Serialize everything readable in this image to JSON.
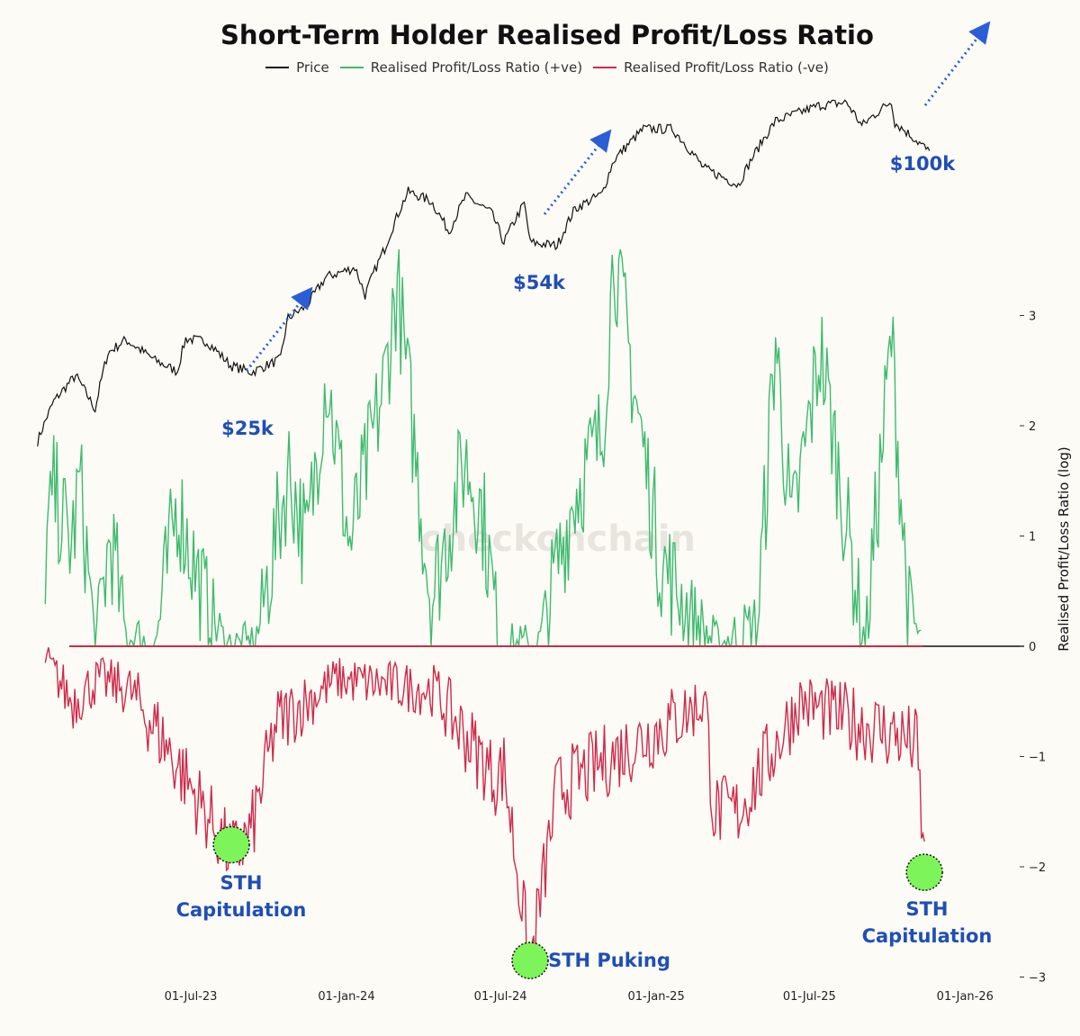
{
  "chart_data": {
    "type": "line",
    "title": "Short-Term Holder Realised Profit/Loss Ratio",
    "ylabel_right": "Realised Profit/Loss Ratio (log)",
    "ylim": [
      -3,
      3.5
    ],
    "y_ticks": [
      "3",
      "2",
      "1",
      "0",
      "−1",
      "−2",
      "−3"
    ],
    "y_tick_values": [
      3,
      2,
      1,
      0,
      -1,
      -2,
      -3
    ],
    "x_ticks": [
      "01-Jul-23",
      "01-Jan-24",
      "01-Jul-24",
      "01-Jan-25",
      "01-Jul-25",
      "01-Jan-26"
    ],
    "x_range": [
      "2023-01-01",
      "2025-11-20"
    ],
    "grid": false,
    "legend_position": "top-center",
    "watermark": "checkonchain",
    "series": [
      {
        "name": "Price",
        "color": "#111111",
        "axis": "price (log, unlabeled)",
        "points": [
          [
            "2023-01-01",
            16600
          ],
          [
            "2023-01-20",
            21000
          ],
          [
            "2023-02-15",
            24500
          ],
          [
            "2023-03-10",
            20000
          ],
          [
            "2023-03-25",
            28000
          ],
          [
            "2023-04-15",
            30300
          ],
          [
            "2023-05-20",
            26800
          ],
          [
            "2023-06-15",
            25100
          ],
          [
            "2023-06-25",
            30500
          ],
          [
            "2023-07-20",
            30000
          ],
          [
            "2023-08-17",
            26000
          ],
          [
            "2023-09-11",
            25000
          ],
          [
            "2023-10-15",
            27000
          ],
          [
            "2023-10-24",
            34500
          ],
          [
            "2023-11-15",
            37000
          ],
          [
            "2023-12-08",
            44000
          ],
          [
            "2024-01-11",
            46500
          ],
          [
            "2024-01-23",
            39500
          ],
          [
            "2024-02-15",
            52000
          ],
          [
            "2024-03-14",
            73000
          ],
          [
            "2024-04-10",
            69000
          ],
          [
            "2024-05-01",
            57500
          ],
          [
            "2024-05-21",
            71000
          ],
          [
            "2024-06-20",
            64500
          ],
          [
            "2024-07-05",
            54000
          ],
          [
            "2024-07-29",
            68000
          ],
          [
            "2024-08-05",
            54000
          ],
          [
            "2024-09-06",
            53000
          ],
          [
            "2024-09-27",
            66000
          ],
          [
            "2024-10-29",
            72000
          ],
          [
            "2024-11-12",
            88000
          ],
          [
            "2024-12-17",
            106000
          ],
          [
            "2025-01-20",
            106000
          ],
          [
            "2025-02-26",
            84000
          ],
          [
            "2025-04-08",
            76000
          ],
          [
            "2025-05-22",
            111000
          ],
          [
            "2025-07-14",
            122000
          ],
          [
            "2025-08-14",
            124000
          ],
          [
            "2025-09-01",
            108000
          ],
          [
            "2025-10-06",
            125000
          ],
          [
            "2025-10-10",
            110000
          ],
          [
            "2025-11-14",
            95000
          ],
          [
            "2025-11-20",
            92000
          ]
        ]
      },
      {
        "name": "Realised Profit/Loss Ratio (+ve)",
        "color": "#3dbb6e",
        "points": [
          [
            "2023-01-10",
            0.8
          ],
          [
            "2023-01-20",
            1.4
          ],
          [
            "2023-02-10",
            0.9
          ],
          [
            "2023-02-20",
            1.5
          ],
          [
            "2023-03-10",
            0.0
          ],
          [
            "2023-03-28",
            1.0
          ],
          [
            "2023-04-15",
            0.1
          ],
          [
            "2023-05-20",
            0.0
          ],
          [
            "2023-06-15",
            1.3
          ],
          [
            "2023-07-10",
            0.6
          ],
          [
            "2023-08-10",
            0.0
          ],
          [
            "2023-09-15",
            0.0
          ],
          [
            "2023-10-25",
            1.6
          ],
          [
            "2023-11-15",
            0.9
          ],
          [
            "2023-12-08",
            2.5
          ],
          [
            "2024-01-05",
            0.9
          ],
          [
            "2024-02-15",
            2.4
          ],
          [
            "2024-03-01",
            3.3
          ],
          [
            "2024-03-13",
            2.4
          ],
          [
            "2024-04-10",
            0.4
          ],
          [
            "2024-05-20",
            1.7
          ],
          [
            "2024-06-10",
            1.2
          ],
          [
            "2024-07-01",
            0.0
          ],
          [
            "2024-08-15",
            0.0
          ],
          [
            "2024-09-27",
            1.4
          ],
          [
            "2024-10-29",
            1.9
          ],
          [
            "2024-11-12",
            3.6
          ],
          [
            "2024-12-05",
            2.4
          ],
          [
            "2025-01-05",
            0.8
          ],
          [
            "2025-02-10",
            0.3
          ],
          [
            "2025-03-15",
            0.0
          ],
          [
            "2025-05-01",
            0.2
          ],
          [
            "2025-05-22",
            2.8
          ],
          [
            "2025-06-10",
            1.0
          ],
          [
            "2025-07-14",
            2.7
          ],
          [
            "2025-08-10",
            1.3
          ],
          [
            "2025-09-05",
            0.0
          ],
          [
            "2025-10-06",
            2.8
          ],
          [
            "2025-10-25",
            0.4
          ],
          [
            "2025-11-10",
            0.0
          ]
        ]
      },
      {
        "name": "Realised Profit/Loss Ratio (-ve)",
        "color": "#cf2a4b",
        "points": [
          [
            "2023-01-10",
            -0.1
          ],
          [
            "2023-02-10",
            -0.5
          ],
          [
            "2023-03-15",
            -0.3
          ],
          [
            "2023-04-20",
            -0.4
          ],
          [
            "2023-05-25",
            -0.8
          ],
          [
            "2023-08-18",
            -1.9
          ],
          [
            "2023-09-10",
            -1.7
          ],
          [
            "2023-10-10",
            -0.7
          ],
          [
            "2023-12-20",
            -0.3
          ],
          [
            "2024-04-15",
            -0.4
          ],
          [
            "2024-05-01",
            -0.6
          ],
          [
            "2024-06-25",
            -1.2
          ],
          [
            "2024-07-05",
            -1.1
          ],
          [
            "2024-08-05",
            -2.9
          ],
          [
            "2024-09-06",
            -1.3
          ],
          [
            "2025-02-28",
            -0.5
          ],
          [
            "2025-03-10",
            -1.5
          ],
          [
            "2025-04-08",
            -1.5
          ],
          [
            "2025-06-20",
            -0.5
          ],
          [
            "2025-08-30",
            -0.7
          ],
          [
            "2025-10-11",
            -0.8
          ],
          [
            "2025-11-05",
            -0.9
          ],
          [
            "2025-11-14",
            -2.0
          ]
        ]
      }
    ],
    "annotations": [
      {
        "label": "$25k",
        "type": "price-level"
      },
      {
        "label": "$54k",
        "type": "price-level"
      },
      {
        "label": "$100k",
        "type": "price-level"
      },
      {
        "label": "STH Capitulation",
        "date": "2023-08-18",
        "value": -1.8
      },
      {
        "label": "STH Puking",
        "date": "2024-08-05",
        "value": -2.85
      },
      {
        "label": "STH Capitulation",
        "date": "2025-11-14",
        "value": -2.05
      }
    ]
  },
  "legend": [
    {
      "label": "Price",
      "color": "#111111"
    },
    {
      "label": "Realised Profit/Loss Ratio (+ve)",
      "color": "#3dbb6e"
    },
    {
      "label": "Realised Profit/Loss Ratio (-ve)",
      "color": "#cf2a4b"
    }
  ],
  "annotation_labels": {
    "p25": "$25k",
    "p54": "$54k",
    "p100": "$100k",
    "cap1_line1": "STH",
    "cap1_line2": "Capitulation",
    "puking": "STH Puking",
    "cap2_line1": "STH",
    "cap2_line2": "Capitulation"
  },
  "colors": {
    "background": "#fdfbf6",
    "annotation_text": "#1f4fb4",
    "highlight_circle": "#7df55a",
    "arrow": "#2a5ed6"
  }
}
